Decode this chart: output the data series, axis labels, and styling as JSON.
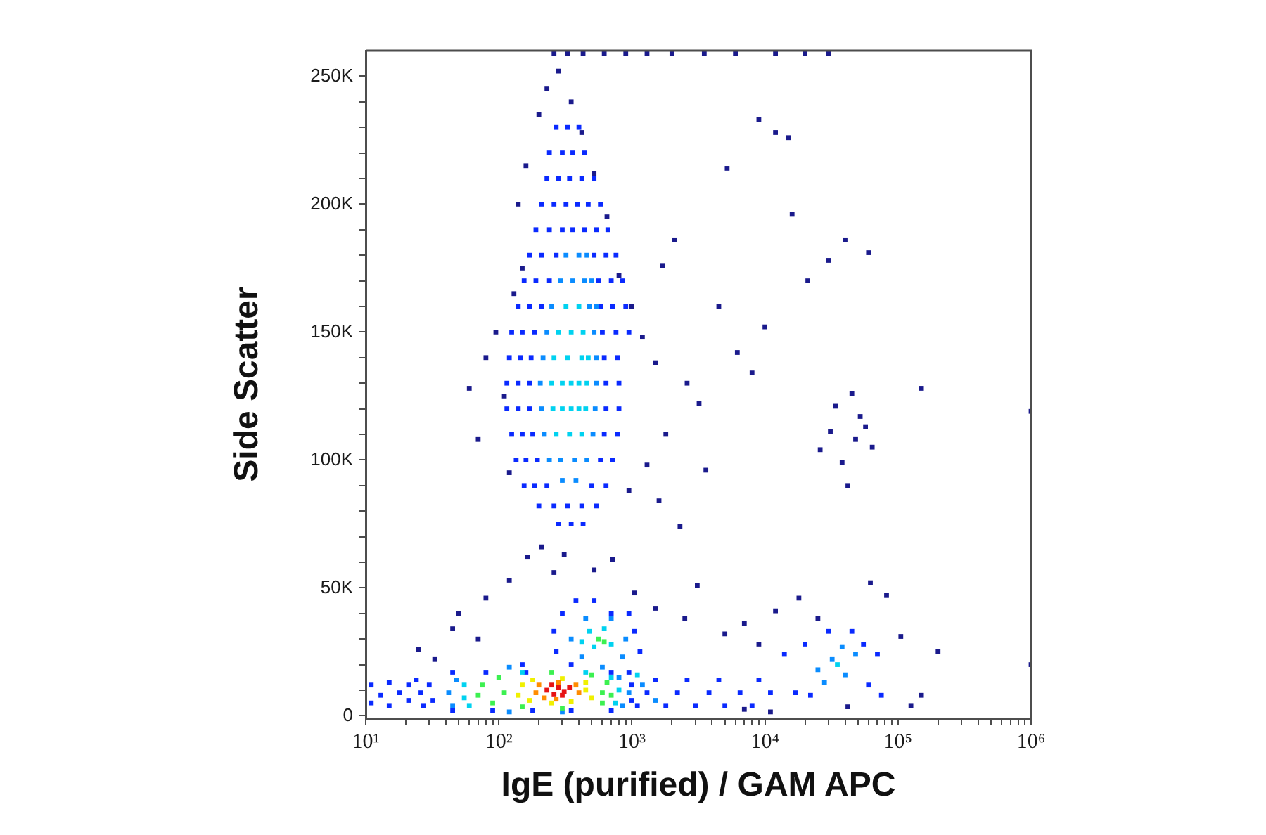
{
  "chart_data": {
    "type": "scatter",
    "xlabel": "IgE (purified) / GAM APC",
    "ylabel": "Side Scatter",
    "log": "x",
    "marker": "square",
    "xlim": [
      10,
      1000000
    ],
    "ylim": [
      -1000,
      260000
    ],
    "xticks": [
      {
        "value": 10,
        "label": "10¹"
      },
      {
        "value": 20,
        "label": null
      },
      {
        "value": 30,
        "label": null
      },
      {
        "value": 40,
        "label": null
      },
      {
        "value": 50,
        "label": null
      },
      {
        "value": 60,
        "label": null
      },
      {
        "value": 70,
        "label": null
      },
      {
        "value": 80,
        "label": null
      },
      {
        "value": 90,
        "label": null
      },
      {
        "value": 100,
        "label": "10²"
      },
      {
        "value": 200,
        "label": null
      },
      {
        "value": 300,
        "label": null
      },
      {
        "value": 400,
        "label": null
      },
      {
        "value": 500,
        "label": null
      },
      {
        "value": 600,
        "label": null
      },
      {
        "value": 700,
        "label": null
      },
      {
        "value": 800,
        "label": null
      },
      {
        "value": 900,
        "label": null
      },
      {
        "value": 1000,
        "label": "10³"
      },
      {
        "value": 2000,
        "label": null
      },
      {
        "value": 3000,
        "label": null
      },
      {
        "value": 4000,
        "label": null
      },
      {
        "value": 5000,
        "label": null
      },
      {
        "value": 6000,
        "label": null
      },
      {
        "value": 7000,
        "label": null
      },
      {
        "value": 8000,
        "label": null
      },
      {
        "value": 9000,
        "label": null
      },
      {
        "value": 10000,
        "label": "10⁴"
      },
      {
        "value": 20000,
        "label": null
      },
      {
        "value": 30000,
        "label": null
      },
      {
        "value": 40000,
        "label": null
      },
      {
        "value": 50000,
        "label": null
      },
      {
        "value": 60000,
        "label": null
      },
      {
        "value": 70000,
        "label": null
      },
      {
        "value": 80000,
        "label": null
      },
      {
        "value": 90000,
        "label": null
      },
      {
        "value": 100000,
        "label": "10⁵"
      },
      {
        "value": 200000,
        "label": null
      },
      {
        "value": 300000,
        "label": null
      },
      {
        "value": 400000,
        "label": null
      },
      {
        "value": 500000,
        "label": null
      },
      {
        "value": 600000,
        "label": null
      },
      {
        "value": 700000,
        "label": null
      },
      {
        "value": 800000,
        "label": null
      },
      {
        "value": 900000,
        "label": null
      },
      {
        "value": 1000000,
        "label": "10⁶"
      }
    ],
    "yticks": [
      0,
      {
        "value": 10000,
        "label": null
      },
      {
        "value": 20000,
        "label": null
      },
      {
        "value": 30000,
        "label": null
      },
      {
        "value": 40000,
        "label": null
      },
      {
        "value": 50000,
        "label": "50K"
      },
      {
        "value": 60000,
        "label": null
      },
      {
        "value": 70000,
        "label": null
      },
      {
        "value": 80000,
        "label": null
      },
      {
        "value": 90000,
        "label": null
      },
      {
        "value": 100000,
        "label": "100K"
      },
      {
        "value": 110000,
        "label": null
      },
      {
        "value": 120000,
        "label": null
      },
      {
        "value": 130000,
        "label": null
      },
      {
        "value": 140000,
        "label": null
      },
      {
        "value": 150000,
        "label": "150K"
      },
      {
        "value": 160000,
        "label": null
      },
      {
        "value": 170000,
        "label": null
      },
      {
        "value": 180000,
        "label": null
      },
      {
        "value": 190000,
        "label": null
      },
      {
        "value": 200000,
        "label": "200K"
      },
      {
        "value": 210000,
        "label": null
      },
      {
        "value": 220000,
        "label": null
      },
      {
        "value": 230000,
        "label": null
      },
      {
        "value": 240000,
        "label": null
      },
      {
        "value": 250000,
        "label": "250K"
      }
    ],
    "series": [
      {
        "color": "#1a1a8c",
        "x": [
          95,
          110,
          80,
          130,
          150,
          120,
          70,
          60,
          140,
          160,
          200,
          230,
          280,
          350,
          420,
          520,
          650,
          800,
          1000,
          1200,
          1500,
          1700,
          2100,
          2600,
          3200,
          1800,
          1300,
          1600,
          950,
          2300,
          3600,
          4500,
          6200,
          8000,
          10000,
          12000,
          15000,
          9000,
          5200,
          21000,
          30000,
          40000,
          60000,
          52000,
          57000,
          26000,
          31000,
          38000,
          45000,
          42000,
          64000,
          34000,
          48000,
          150000,
          1000000,
          16000,
          260,
          330,
          430,
          620,
          900,
          1300,
          2000,
          3500,
          6000,
          12000,
          20000,
          30000,
          50,
          80,
          70,
          120,
          165,
          210,
          260,
          310,
          520,
          720,
          1050,
          1500,
          2500,
          3100,
          5000,
          7000,
          9000,
          12000,
          18000,
          25000,
          62000,
          82000,
          105000,
          150000,
          200000,
          125000,
          1000000,
          7000,
          11000,
          42000,
          45,
          33,
          25
        ],
        "values": [
          150000,
          125000,
          140000,
          165000,
          175000,
          95000,
          108000,
          128000,
          200000,
          215000,
          235000,
          245000,
          252000,
          240000,
          228000,
          212000,
          195000,
          172000,
          160000,
          148000,
          138000,
          176000,
          186000,
          130000,
          122000,
          110000,
          98000,
          84000,
          88000,
          74000,
          96000,
          160000,
          142000,
          134000,
          152000,
          228000,
          226000,
          233000,
          214000,
          170000,
          178000,
          186000,
          181000,
          117000,
          113000,
          104000,
          111000,
          99000,
          126000,
          90000,
          105000,
          121000,
          108000,
          128000,
          119000,
          196000,
          259000,
          259000,
          259000,
          259000,
          259000,
          259000,
          259000,
          259000,
          259000,
          259000,
          259000,
          259000,
          40000,
          46000,
          30000,
          53000,
          62000,
          66000,
          56000,
          63000,
          57000,
          61000,
          48000,
          42000,
          38000,
          51000,
          32000,
          36000,
          28000,
          41000,
          46000,
          38000,
          52000,
          47000,
          31000,
          8000,
          25000,
          4000,
          20000,
          2500,
          1500,
          3500,
          34000,
          22000,
          26000
        ]
      },
      {
        "color": "#0a2aff",
        "x": [
          270,
          330,
          400,
          240,
          300,
          360,
          440,
          230,
          280,
          340,
          420,
          520,
          210,
          260,
          320,
          390,
          470,
          580,
          190,
          240,
          300,
          360,
          440,
          540,
          660,
          170,
          210,
          270,
          520,
          640,
          760,
          155,
          190,
          240,
          560,
          700,
          850,
          140,
          170,
          210,
          580,
          720,
          900,
          125,
          150,
          185,
          600,
          760,
          950,
          120,
          145,
          175,
          620,
          780,
          115,
          140,
          170,
          640,
          800,
          115,
          140,
          170,
          640,
          800,
          125,
          150,
          180,
          620,
          780,
          135,
          160,
          195,
          580,
          720,
          155,
          185,
          230,
          500,
          640,
          200,
          260,
          330,
          420,
          540,
          280,
          350,
          430,
          45,
          90,
          180,
          350,
          700,
          32,
          1000,
          30,
          1000,
          45,
          80,
          160,
          700,
          950,
          150,
          350,
          11,
          11,
          13,
          15,
          15,
          18,
          21,
          21,
          26,
          27,
          24,
          380,
          520,
          300,
          700,
          950,
          260,
          1050,
          270,
          1150,
          1100,
          1800,
          3000,
          5000,
          8000,
          1300,
          2200,
          3800,
          6500,
          11000,
          17000,
          1500,
          2600,
          4500,
          9000,
          22000,
          75000,
          60000,
          20000,
          55000,
          30000,
          45000,
          14000,
          70000
        ],
        "values": [
          230000,
          230000,
          230000,
          220000,
          220000,
          220000,
          220000,
          210000,
          210000,
          210000,
          210000,
          210000,
          200000,
          200000,
          200000,
          200000,
          200000,
          200000,
          190000,
          190000,
          190000,
          190000,
          190000,
          190000,
          190000,
          180000,
          180000,
          180000,
          180000,
          180000,
          180000,
          170000,
          170000,
          170000,
          170000,
          170000,
          170000,
          160000,
          160000,
          160000,
          160000,
          160000,
          160000,
          150000,
          150000,
          150000,
          150000,
          150000,
          150000,
          140000,
          140000,
          140000,
          140000,
          140000,
          130000,
          130000,
          130000,
          130000,
          130000,
          120000,
          120000,
          120000,
          120000,
          120000,
          110000,
          110000,
          110000,
          110000,
          110000,
          100000,
          100000,
          100000,
          100000,
          100000,
          90000,
          90000,
          90000,
          90000,
          90000,
          82000,
          82000,
          82000,
          82000,
          82000,
          75000,
          75000,
          75000,
          2000,
          2000,
          2000,
          2000,
          2000,
          6000,
          6000,
          12000,
          12000,
          17000,
          17000,
          17000,
          17000,
          17000,
          20000,
          20000,
          5000,
          12000,
          8000,
          4000,
          13000,
          9000,
          6000,
          12000,
          9000,
          4000,
          14000,
          45000,
          45000,
          40000,
          40000,
          40000,
          33000,
          33000,
          25000,
          25000,
          4000,
          4000,
          4000,
          4000,
          4000,
          9000,
          9000,
          9000,
          9000,
          9000,
          9000,
          14000,
          14000,
          14000,
          14000,
          8000,
          8000,
          12000,
          28000,
          28000,
          33000,
          33000,
          24000,
          24000
        ]
      },
      {
        "color": "#0a8cff",
        "x": [
          320,
          400,
          460,
          290,
          360,
          440,
          500,
          250,
          480,
          540,
          230,
          520,
          215,
          540,
          205,
          540,
          210,
          530,
          220,
          510,
          240,
          290,
          370,
          460,
          300,
          380,
          42,
          45,
          48,
          950,
          850,
          800,
          120,
          600,
          300,
          120,
          450,
          700,
          350,
          900,
          420,
          850,
          1200,
          1500,
          25000,
          32000,
          40000,
          48000,
          38000,
          28000
        ],
        "values": [
          180000,
          180000,
          180000,
          170000,
          170000,
          170000,
          170000,
          160000,
          160000,
          160000,
          150000,
          150000,
          140000,
          140000,
          130000,
          130000,
          120000,
          120000,
          110000,
          110000,
          100000,
          100000,
          100000,
          100000,
          92000,
          92000,
          9000,
          4000,
          14000,
          9000,
          4000,
          15000,
          19000,
          19000,
          1500,
          1500,
          38000,
          38000,
          30000,
          30000,
          23000,
          23000,
          12000,
          6000,
          18000,
          22000,
          16000,
          24000,
          27000,
          13000
        ]
      },
      {
        "color": "#00d2f0",
        "x": [
          320,
          400,
          280,
          350,
          430,
          260,
          330,
          420,
          470,
          250,
          300,
          350,
          400,
          460,
          255,
          300,
          350,
          400,
          450,
          270,
          340,
          420,
          55,
          55,
          60,
          800,
          750,
          700,
          150,
          450,
          480,
          620,
          520,
          700,
          420,
          35000,
          1100
        ],
        "values": [
          160000,
          160000,
          150000,
          150000,
          150000,
          140000,
          140000,
          140000,
          140000,
          130000,
          130000,
          130000,
          130000,
          130000,
          120000,
          120000,
          120000,
          120000,
          120000,
          110000,
          110000,
          110000,
          7000,
          12000,
          4000,
          10000,
          5000,
          15000,
          17000,
          17000,
          33000,
          34000,
          27000,
          28000,
          29000,
          20000,
          16000
        ]
      },
      {
        "color": "#3cf050",
        "x": [
          70,
          75,
          90,
          100,
          110,
          600,
          650,
          600,
          500,
          250,
          300,
          150,
          700,
          560,
          620
        ],
        "values": [
          8000,
          12000,
          5000,
          15000,
          9000,
          9000,
          13000,
          5000,
          16000,
          17000,
          3000,
          3500,
          8000,
          30000,
          29000
        ]
      },
      {
        "color": "#f0f000",
        "x": [
          140,
          150,
          170,
          180,
          450,
          500,
          450,
          300,
          250,
          350
        ],
        "values": [
          8000,
          12000,
          6000,
          14000,
          10000,
          7000,
          13000,
          14500,
          5000,
          5500
        ]
      },
      {
        "color": "#ff8c00",
        "x": [
          190,
          200,
          400,
          380,
          280,
          270,
          220
        ],
        "values": [
          9000,
          12000,
          9000,
          12000,
          13000,
          6500,
          7000
        ]
      },
      {
        "color": "#e61414",
        "x": [
          230,
          260,
          280,
          310,
          340,
          300,
          250
        ],
        "values": [
          10000,
          8500,
          11000,
          9500,
          11000,
          8000,
          12000
        ]
      }
    ]
  }
}
